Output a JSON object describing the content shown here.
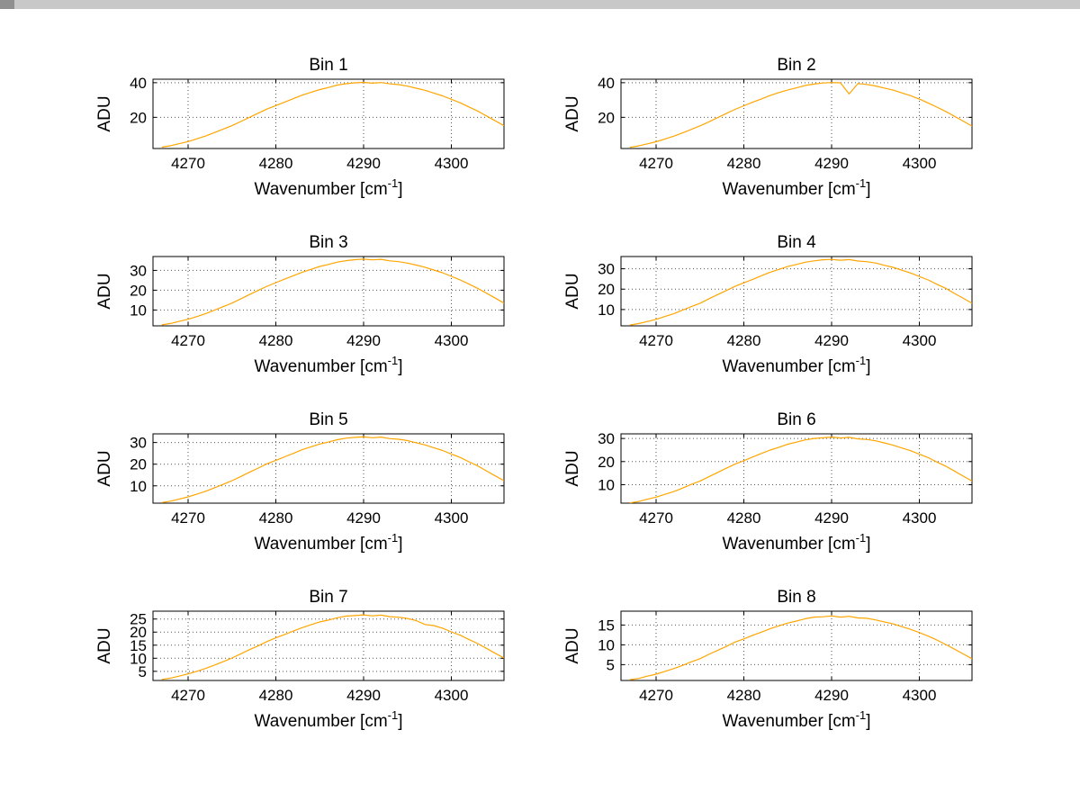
{
  "figure": {
    "background": "#ffffff",
    "line_color": "#ffa500",
    "axis_color": "#000000",
    "grid_color": "#555555"
  },
  "chart_data": {
    "type": "line",
    "layout": "4x2 grid of subplots",
    "grid": "dotted, on",
    "legend": "none",
    "xlabel": {
      "pre": "Wavenumber [cm",
      "sup": "-1",
      "post": "]"
    },
    "ylabel": "ADU",
    "xlim": [
      4266,
      4306
    ],
    "xticks": [
      4270,
      4280,
      4290,
      4300
    ],
    "x": [
      4267,
      4268,
      4269,
      4270,
      4271,
      4272,
      4273,
      4274,
      4275,
      4276,
      4277,
      4278,
      4279,
      4280,
      4281,
      4282,
      4283,
      4284,
      4285,
      4286,
      4287,
      4288,
      4289,
      4290,
      4291,
      4292,
      4293,
      4294,
      4295,
      4296,
      4297,
      4298,
      4299,
      4300,
      4301,
      4302,
      4303,
      4304,
      4305,
      4306
    ],
    "panels": [
      {
        "title": "Bin 1",
        "ylim": [
          2,
          42
        ],
        "yticks": [
          20,
          40
        ],
        "values": [
          2.8,
          3.6,
          4.8,
          6.0,
          7.6,
          9.2,
          11.2,
          13.2,
          15.2,
          17.6,
          20.0,
          22.4,
          24.8,
          26.8,
          28.8,
          30.8,
          32.8,
          34.4,
          36.0,
          37.2,
          38.6,
          39.4,
          39.9,
          40.2,
          39.7,
          40.1,
          39.3,
          38.9,
          38.0,
          36.8,
          35.6,
          34.0,
          32.4,
          30.4,
          28.4,
          26.0,
          23.6,
          20.8,
          18.0,
          15.2
        ]
      },
      {
        "title": "Bin 2",
        "ylim": [
          2,
          42
        ],
        "yticks": [
          20,
          40
        ],
        "values": [
          2.7,
          3.5,
          4.7,
          5.9,
          7.5,
          9.1,
          11.0,
          13.0,
          15.1,
          17.4,
          19.8,
          22.2,
          24.6,
          26.7,
          28.7,
          30.6,
          32.6,
          34.3,
          35.8,
          37.0,
          38.4,
          39.2,
          39.8,
          40.1,
          39.9,
          33.5,
          39.5,
          39.0,
          38.1,
          36.9,
          35.7,
          34.1,
          32.5,
          30.5,
          28.3,
          25.9,
          23.4,
          20.6,
          17.8,
          15.0
        ]
      },
      {
        "title": "Bin 3",
        "ylim": [
          2,
          37
        ],
        "yticks": [
          10,
          20,
          30
        ],
        "values": [
          2.5,
          3.2,
          4.3,
          5.3,
          6.7,
          8.2,
          9.9,
          11.7,
          13.5,
          15.6,
          17.8,
          19.9,
          22.0,
          23.8,
          25.6,
          27.3,
          29.1,
          30.5,
          32.0,
          33.0,
          34.2,
          34.9,
          35.4,
          35.7,
          35.3,
          35.6,
          34.8,
          34.4,
          33.7,
          32.7,
          31.6,
          30.2,
          28.8,
          27.0,
          25.2,
          23.1,
          20.9,
          18.5,
          16.0,
          13.5
        ]
      },
      {
        "title": "Bin 4",
        "ylim": [
          2,
          36
        ],
        "yticks": [
          10,
          20,
          30
        ],
        "values": [
          2.4,
          3.1,
          4.1,
          5.2,
          6.6,
          7.9,
          9.7,
          11.4,
          13.1,
          15.2,
          17.3,
          19.3,
          21.4,
          23.1,
          24.8,
          26.6,
          28.3,
          29.7,
          31.1,
          32.1,
          33.2,
          33.9,
          34.4,
          34.6,
          34.2,
          34.5,
          33.8,
          33.5,
          32.8,
          31.7,
          30.7,
          29.3,
          27.9,
          26.2,
          24.5,
          22.4,
          20.4,
          17.9,
          15.5,
          13.1
        ]
      },
      {
        "title": "Bin 5",
        "ylim": [
          2,
          34
        ],
        "yticks": [
          10,
          20,
          30
        ],
        "values": [
          2.3,
          2.9,
          3.9,
          4.9,
          6.2,
          7.5,
          9.1,
          10.7,
          12.4,
          14.3,
          16.3,
          18.2,
          20.2,
          21.8,
          23.4,
          25.0,
          26.7,
          28.0,
          29.3,
          30.2,
          31.3,
          32.0,
          32.4,
          32.6,
          32.2,
          32.5,
          31.8,
          31.5,
          30.9,
          29.9,
          28.9,
          27.6,
          26.3,
          24.7,
          23.1,
          21.1,
          19.2,
          16.9,
          14.6,
          12.4
        ]
      },
      {
        "title": "Bin 6",
        "ylim": [
          2,
          32
        ],
        "yticks": [
          10,
          20,
          30
        ],
        "values": [
          2.1,
          2.7,
          3.7,
          4.6,
          5.8,
          7.0,
          8.5,
          10.1,
          11.6,
          13.4,
          15.3,
          17.1,
          18.9,
          20.4,
          22.0,
          23.5,
          25.0,
          26.2,
          27.5,
          28.4,
          29.4,
          30.0,
          30.3,
          30.6,
          30.2,
          30.5,
          29.8,
          29.6,
          29.0,
          28.1,
          27.1,
          25.9,
          24.7,
          23.2,
          21.7,
          19.8,
          18.0,
          15.9,
          13.7,
          11.6
        ]
      },
      {
        "title": "Bin 7",
        "ylim": [
          1.5,
          28
        ],
        "yticks": [
          5,
          10,
          15,
          20,
          25
        ],
        "values": [
          1.9,
          2.4,
          3.2,
          4.0,
          5.0,
          6.1,
          7.4,
          8.7,
          10.1,
          11.7,
          13.3,
          14.8,
          16.4,
          17.8,
          19.1,
          20.4,
          21.7,
          22.8,
          23.9,
          24.6,
          25.5,
          26.1,
          26.3,
          26.6,
          26.2,
          26.5,
          25.9,
          25.7,
          25.2,
          24.4,
          22.9,
          22.5,
          21.5,
          20.1,
          18.8,
          17.2,
          15.6,
          13.8,
          11.9,
          10.1
        ]
      },
      {
        "title": "Bin 8",
        "ylim": [
          1,
          18.5
        ],
        "yticks": [
          5,
          10,
          15
        ],
        "values": [
          1.2,
          1.5,
          2.1,
          2.6,
          3.3,
          4.0,
          4.8,
          5.7,
          6.5,
          7.6,
          8.6,
          9.6,
          10.7,
          11.5,
          12.4,
          13.2,
          14.1,
          14.8,
          15.5,
          16.0,
          16.6,
          17.0,
          17.1,
          17.3,
          17.0,
          17.2,
          16.8,
          16.7,
          16.3,
          15.8,
          15.3,
          14.6,
          13.9,
          13.1,
          12.2,
          11.2,
          10.1,
          8.9,
          7.7,
          6.5
        ]
      }
    ]
  }
}
